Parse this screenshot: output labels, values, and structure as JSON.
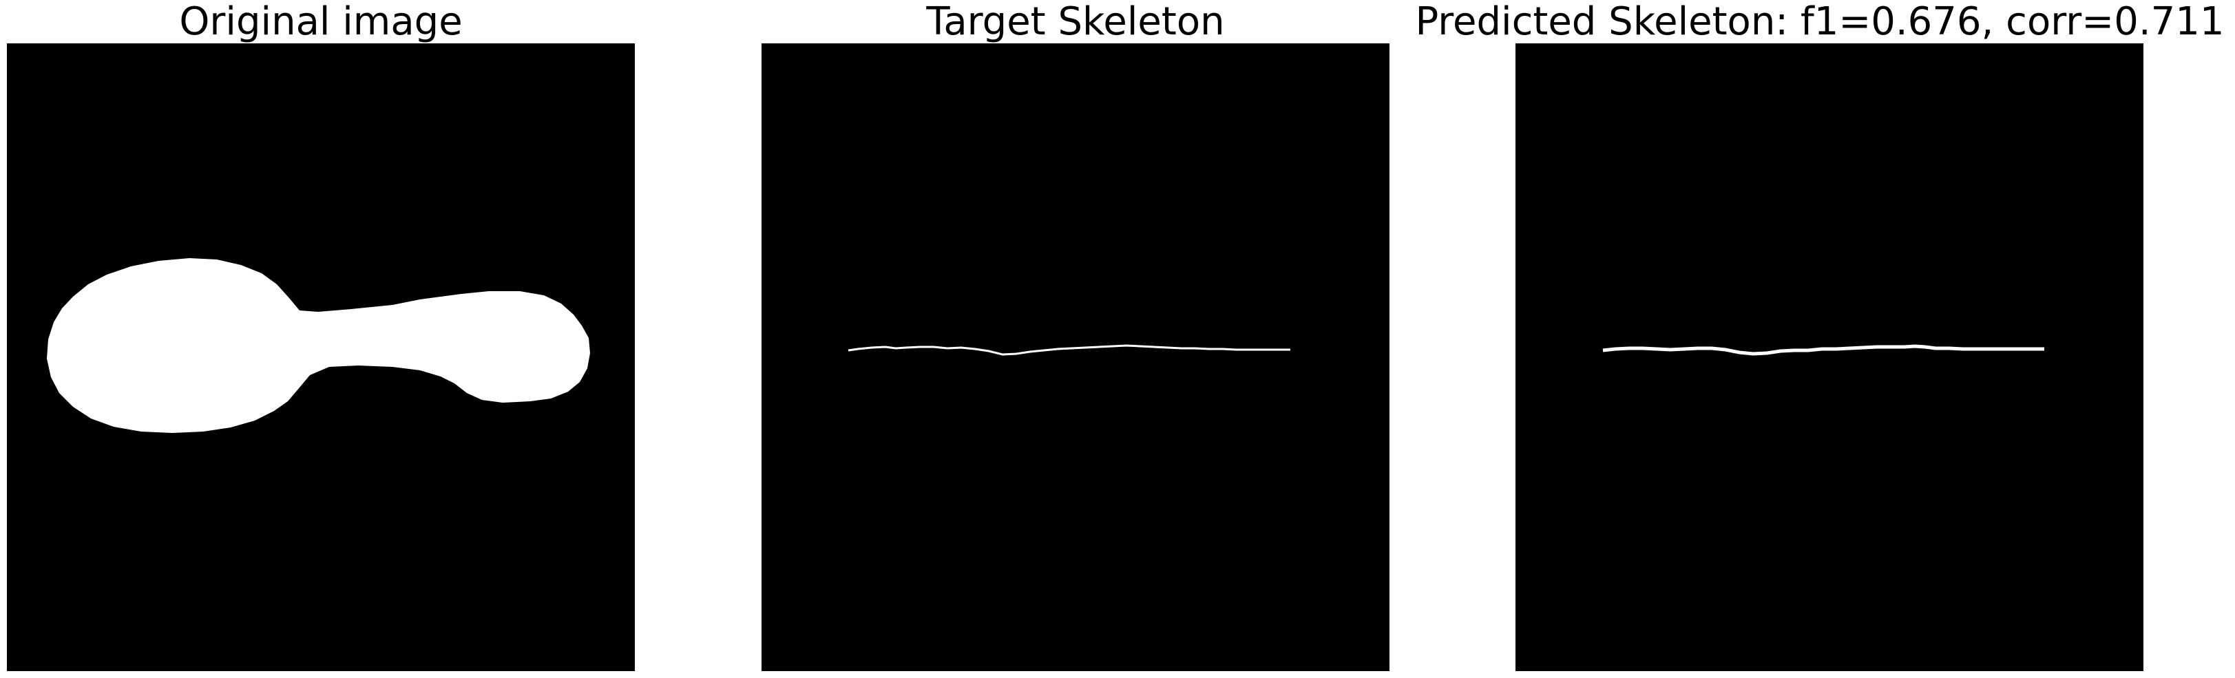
{
  "figure": {
    "panels": [
      {
        "title": "Original image"
      },
      {
        "title": "Target Skeleton"
      },
      {
        "title": "Predicted Skeleton: f1=0.676, corr=0.711"
      }
    ]
  },
  "colors": {
    "background": "#000000",
    "foreground": "#ffffff"
  }
}
